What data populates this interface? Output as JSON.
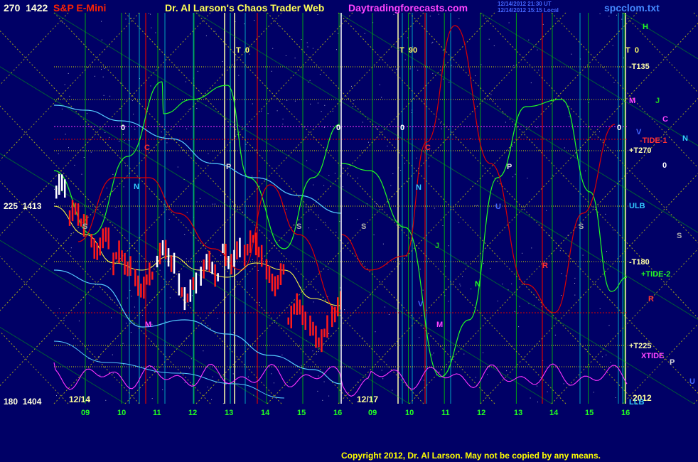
{
  "header": {
    "instrument": "S&P E-Mini",
    "site_title": "Dr. Al Larson's Chaos Trader Web",
    "site_url": "Daytradingforecasts.com",
    "stamp_line1": "12/14/2012 21:30 UT",
    "stamp_line2": "12/14/2012 15:15 Local",
    "file_name": "spcclom.txt"
  },
  "footer": {
    "copyright": "Copyright 2012, Dr. Al Larson. May not be copied by any means."
  },
  "left_axis": [
    {
      "angle": "270",
      "price": "1422",
      "value": 1422
    },
    {
      "angle": "225",
      "price": "1413",
      "value": 1413
    },
    {
      "angle": "180",
      "price": "1404",
      "value": 1404
    }
  ],
  "date_labels": [
    "12/14",
    "12/17",
    "2012"
  ],
  "hour_labels": [
    "09",
    "10",
    "11",
    "12",
    "13",
    "14",
    "15",
    "16",
    "09",
    "10",
    "11",
    "12",
    "13",
    "14",
    "15",
    "16"
  ],
  "t_markers": [
    {
      "letter": "T",
      "value": "0"
    },
    {
      "letter": "T",
      "value": "90"
    },
    {
      "letter": "T",
      "value": "0"
    }
  ],
  "zero_labels": [
    "0",
    "0",
    "0",
    "0",
    "0"
  ],
  "right_labels": {
    "h": "H",
    "t135": "-T135",
    "m": "M",
    "j": "J",
    "c": "C",
    "v": "V",
    "n": "N",
    "tide1": "-TIDE-1",
    "t270": "+T270",
    "zero": "0",
    "ulb": "ULB",
    "s": "S",
    "t180": "-T180",
    "tide2": "+TIDE-2",
    "r": "R",
    "t225": "+T225",
    "xtide": "XTIDE",
    "p": "P",
    "u": "U",
    "llb": "LLB"
  },
  "planet_markers": [
    {
      "letter": "C"
    },
    {
      "letter": "N"
    },
    {
      "letter": "P"
    },
    {
      "letter": "S"
    },
    {
      "letter": "M"
    },
    {
      "letter": "S"
    },
    {
      "letter": "C"
    },
    {
      "letter": "N"
    },
    {
      "letter": "J"
    },
    {
      "letter": "V"
    },
    {
      "letter": "M"
    },
    {
      "letter": "N"
    },
    {
      "letter": "P"
    },
    {
      "letter": "U"
    },
    {
      "letter": "S"
    },
    {
      "letter": "R"
    },
    {
      "letter": "S"
    }
  ],
  "colors": {
    "background": "#000066",
    "instrument": "#ff2200",
    "site_title": "#ffff55",
    "site_url": "#ff44ff",
    "file_name": "#4488ff",
    "copyright": "#ffff00",
    "grid_green": "#00cc00",
    "grid_yellow": "#dddd00",
    "cyan": "#00dddd",
    "red_line": "#dd0000",
    "green_line": "#22ff22",
    "magenta": "#ff33ff",
    "light_cyan": "#55ccff"
  },
  "chart_data": {
    "type": "line",
    "y_axis_price_range": [
      1404,
      1422
    ],
    "sessions": [
      "12/14",
      "12/17"
    ],
    "hours": [
      9,
      10,
      11,
      12,
      13,
      14,
      15,
      16
    ],
    "price_series_12_14": [
      1413.8,
      1412.6,
      1411.4,
      1410.6,
      1409.6,
      1410.8,
      1409.2,
      1410.2,
      1410.8,
      1411.2,
      1409.8,
      1408.2,
      1407.2,
      1408.4
    ],
    "price_series_12_17_forecast": [
      1411.5,
      1413.2,
      1420.5,
      1415.0,
      1409.0,
      1407.2,
      1410.5,
      1415.2
    ]
  }
}
